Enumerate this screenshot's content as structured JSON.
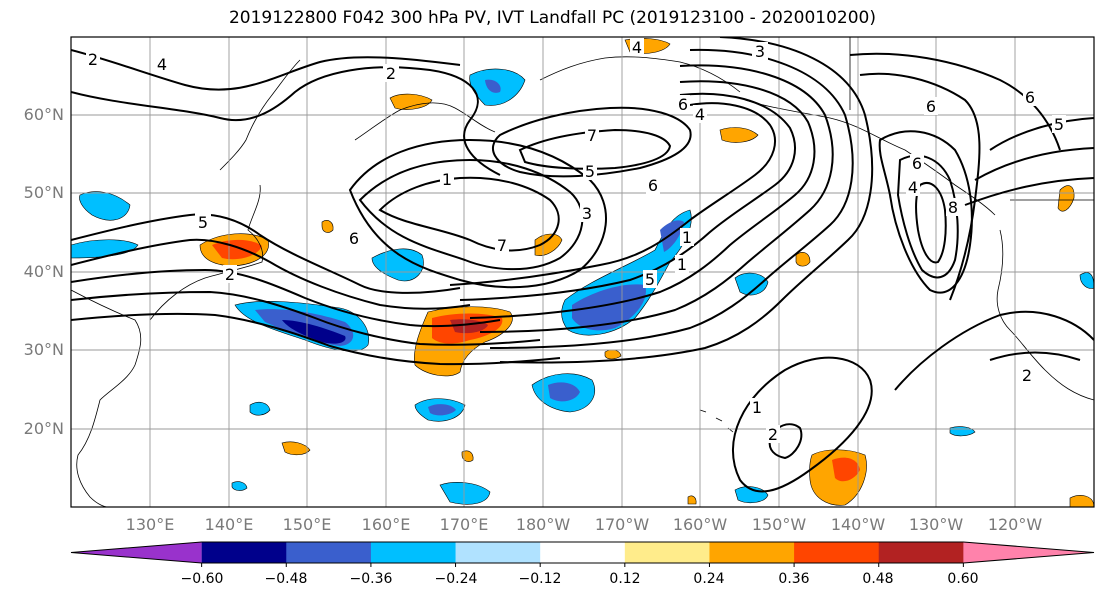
{
  "title": "2019122800 F042 300 hPa PV, IVT Landfall PC (2019123100 - 2020010200)",
  "lat_labels": [
    "60°N",
    "50°N",
    "40°N",
    "30°N",
    "20°N"
  ],
  "lon_labels": [
    "130°E",
    "140°E",
    "150°E",
    "160°E",
    "170°E",
    "180°W",
    "170°W",
    "160°W",
    "150°W",
    "140°W",
    "130°W",
    "120°W"
  ],
  "colorbar": {
    "tick_labels": [
      "−0.60",
      "−0.48",
      "−0.36",
      "−0.24",
      "−0.12",
      "0.12",
      "0.24",
      "0.36",
      "0.48",
      "0.60"
    ],
    "colors": [
      "#9932cc",
      "#00008b",
      "#3a5fcd",
      "#00bfff",
      "#b0e2ff",
      "#ffffff",
      "#ffec8b",
      "#ffa500",
      "#ff4500",
      "#b22222",
      "#ff82ab"
    ]
  },
  "contour_labels": [
    "2",
    "2",
    "4",
    "3",
    "6",
    "6",
    "4",
    "7",
    "5",
    "6",
    "1",
    "3",
    "7",
    "5",
    "2",
    "2",
    "6",
    "6",
    "6",
    "8",
    "5",
    "1",
    "4",
    "5",
    "1",
    "2",
    "1",
    "4"
  ]
}
